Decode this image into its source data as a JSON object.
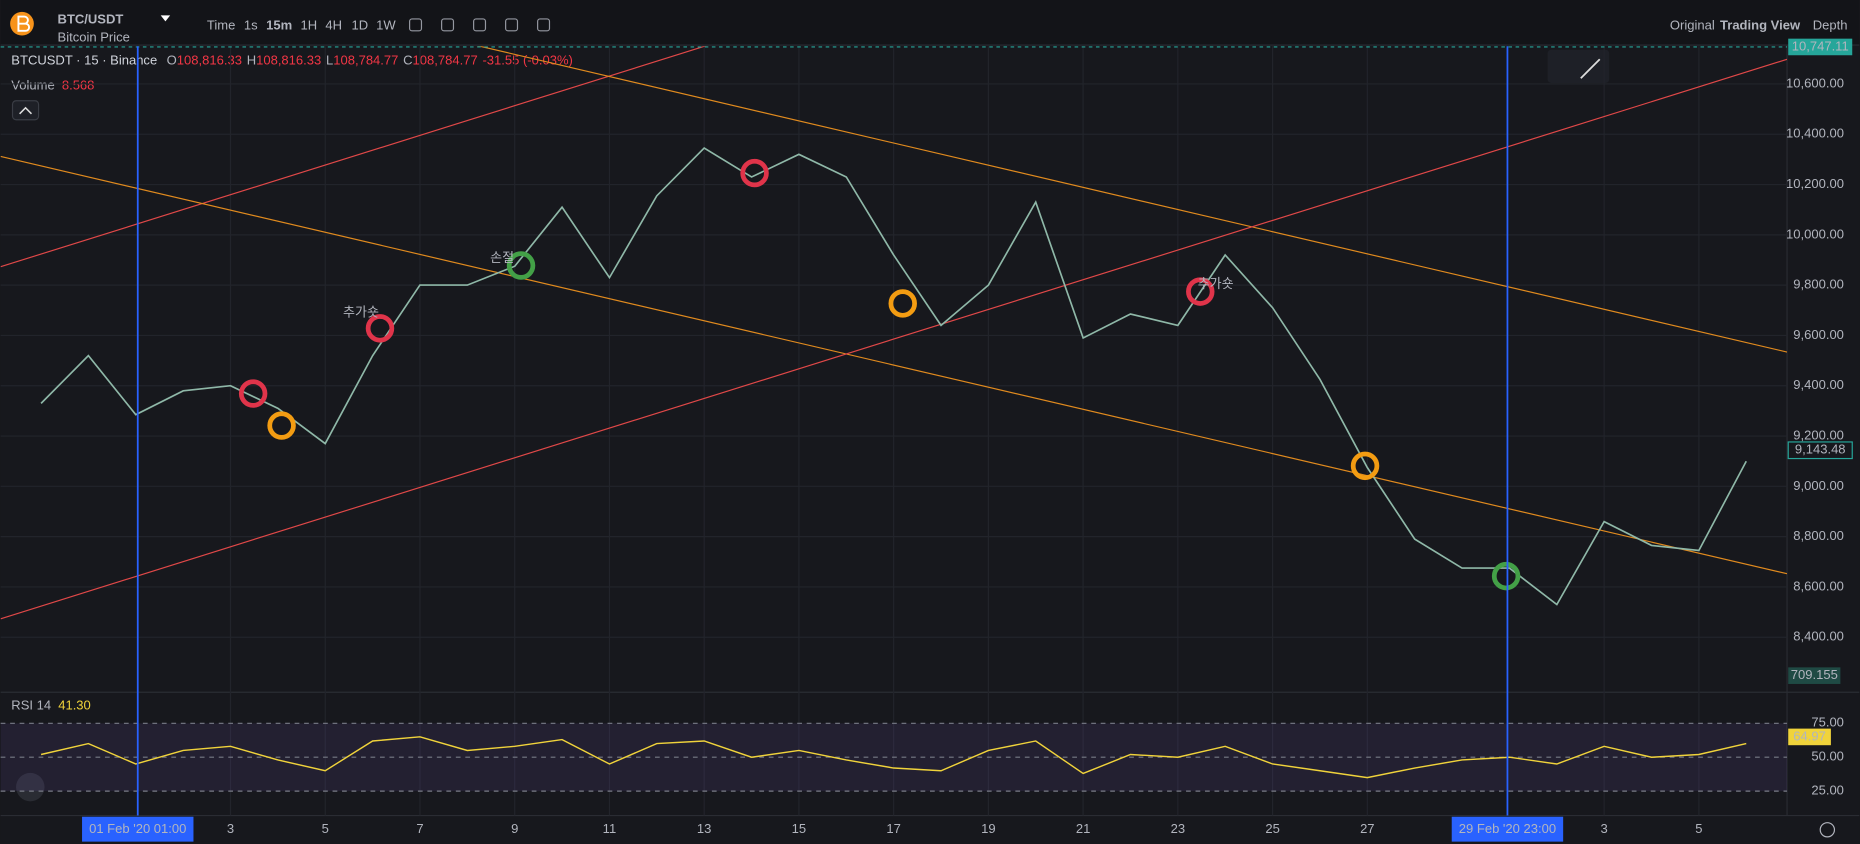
{
  "header": {
    "symbol": "BTC/USDT",
    "subtitle": "Bitcoin Price",
    "intervals": [
      "Time",
      "1s",
      "15m",
      "1H",
      "4H",
      "1D",
      "1W"
    ],
    "views": [
      "Original",
      "Trading View",
      "Depth"
    ]
  },
  "legend": {
    "symbol": "BTCUSDT · 15 · Binance",
    "open_label": "O",
    "open": "108,816.33",
    "high_label": "H",
    "high": "108,816.33",
    "low_label": "L",
    "low": "108,784.77",
    "close_label": "C",
    "close": "108,784.77",
    "change": "-31.55 (-0.03%)",
    "volume_label": "Volume",
    "volume": "8.568",
    "volume_last": "709.155",
    "rsi_label": "RSI 14",
    "rsi": "41.30"
  },
  "annotations": [
    {
      "text": "손절"
    },
    {
      "text": "추가숏"
    },
    {
      "text": "추가숏"
    }
  ],
  "chart_data": [
    {
      "type": "line",
      "color": "#8fb8a8",
      "x": [
        "2020-01-30",
        "2020-01-31",
        "2020-02-01",
        "2020-02-02",
        "2020-02-03",
        "2020-02-04",
        "2020-02-05",
        "2020-02-06",
        "2020-02-07",
        "2020-02-08",
        "2020-02-09",
        "2020-02-10",
        "2020-02-11",
        "2020-02-12",
        "2020-02-13",
        "2020-02-14",
        "2020-02-15",
        "2020-02-16",
        "2020-02-17",
        "2020-02-18",
        "2020-02-19",
        "2020-02-20",
        "2020-02-21",
        "2020-02-22",
        "2020-02-23",
        "2020-02-24",
        "2020-02-25",
        "2020-02-26",
        "2020-02-27",
        "2020-02-28",
        "2020-02-29",
        "2020-03-01",
        "2020-03-02",
        "2020-03-03",
        "2020-03-04",
        "2020-03-05",
        "2020-03-06"
      ],
      "values": [
        9330,
        9520,
        9285,
        9380,
        9400,
        9310,
        9170,
        9520,
        9800,
        9800,
        9875,
        10110,
        9830,
        10155,
        10345,
        10230,
        10320,
        10230,
        9920,
        9640,
        9800,
        10130,
        9590,
        9685,
        9640,
        9920,
        9710,
        9425,
        9075,
        8790,
        8675,
        8675,
        8530,
        8860,
        8765,
        8745,
        9100
      ],
      "xlim": [
        "2020-01-29T03:32",
        "2020-03-06T20:40"
      ],
      "xticks": [
        {
          "value": "2020-02-03",
          "label": "3"
        },
        {
          "value": "2020-02-05",
          "label": "5"
        },
        {
          "value": "2020-02-07",
          "label": "7"
        },
        {
          "value": "2020-02-09",
          "label": "9"
        },
        {
          "value": "2020-02-11",
          "label": "11"
        },
        {
          "value": "2020-02-13",
          "label": "13"
        },
        {
          "value": "2020-02-15",
          "label": "15"
        },
        {
          "value": "2020-02-17",
          "label": "17"
        },
        {
          "value": "2020-02-19",
          "label": "19"
        },
        {
          "value": "2020-02-21",
          "label": "21"
        },
        {
          "value": "2020-02-23",
          "label": "23"
        },
        {
          "value": "2020-02-25",
          "label": "25"
        },
        {
          "value": "2020-02-27",
          "label": "27"
        },
        {
          "value": "2020-03-03",
          "label": "3"
        },
        {
          "value": "2020-03-05",
          "label": "5"
        }
      ],
      "cursors": [
        {
          "value": "2020-02-01T01:00",
          "label": "01 Feb '20   01:00"
        },
        {
          "value": "2020-02-29T23:00",
          "label": "29 Feb '20   23:00"
        }
      ],
      "ylim": [
        8200,
        10750
      ],
      "yticks": [
        {
          "value": 8400,
          "label": "8,400.00"
        },
        {
          "value": 8600,
          "label": "8,600.00"
        },
        {
          "value": 8800,
          "label": "8,800.00"
        },
        {
          "value": 9000,
          "label": "9,000.00"
        },
        {
          "value": 9200,
          "label": "9,200.00"
        },
        {
          "value": 9400,
          "label": "9,400.00"
        },
        {
          "value": 9600,
          "label": "9,600.00"
        },
        {
          "value": 9800,
          "label": "9,800.00"
        },
        {
          "value": 10000,
          "label": "10,000.00"
        },
        {
          "value": 10200,
          "label": "10,200.00"
        },
        {
          "value": 10400,
          "label": "10,400.00"
        },
        {
          "value": 10600,
          "label": "10,600.00"
        }
      ],
      "last_value": {
        "value": 9143.48,
        "label": "9,143.48"
      },
      "top_value": {
        "value": 10747.11,
        "label": "10,747.11"
      },
      "grid": true
    },
    {
      "type": "line",
      "color": "#f0d33b",
      "x": [
        "2020-01-30",
        "2020-01-31",
        "2020-02-01",
        "2020-02-02",
        "2020-02-03",
        "2020-02-04",
        "2020-02-05",
        "2020-02-06",
        "2020-02-07",
        "2020-02-08",
        "2020-02-09",
        "2020-02-10",
        "2020-02-11",
        "2020-02-12",
        "2020-02-13",
        "2020-02-14",
        "2020-02-15",
        "2020-02-16",
        "2020-02-17",
        "2020-02-18",
        "2020-02-19",
        "2020-02-20",
        "2020-02-21",
        "2020-02-22",
        "2020-02-23",
        "2020-02-24",
        "2020-02-25",
        "2020-02-26",
        "2020-02-27",
        "2020-02-28",
        "2020-02-29",
        "2020-03-01",
        "2020-03-02",
        "2020-03-03",
        "2020-03-04",
        "2020-03-05",
        "2020-03-06"
      ],
      "values": [
        52,
        60,
        45,
        55,
        58,
        48,
        40,
        62,
        65,
        55,
        58,
        63,
        45,
        60,
        62,
        50,
        55,
        48,
        42,
        40,
        55,
        62,
        38,
        52,
        50,
        58,
        45,
        40,
        35,
        42,
        48,
        50,
        45,
        58,
        50,
        52,
        60
      ],
      "ylim": [
        7,
        97
      ],
      "yticks": [
        {
          "value": 25,
          "label": "25.00"
        },
        {
          "value": 50,
          "label": "50.00"
        },
        {
          "value": 75,
          "label": "75.00"
        }
      ],
      "last_value": 64.97
    }
  ]
}
